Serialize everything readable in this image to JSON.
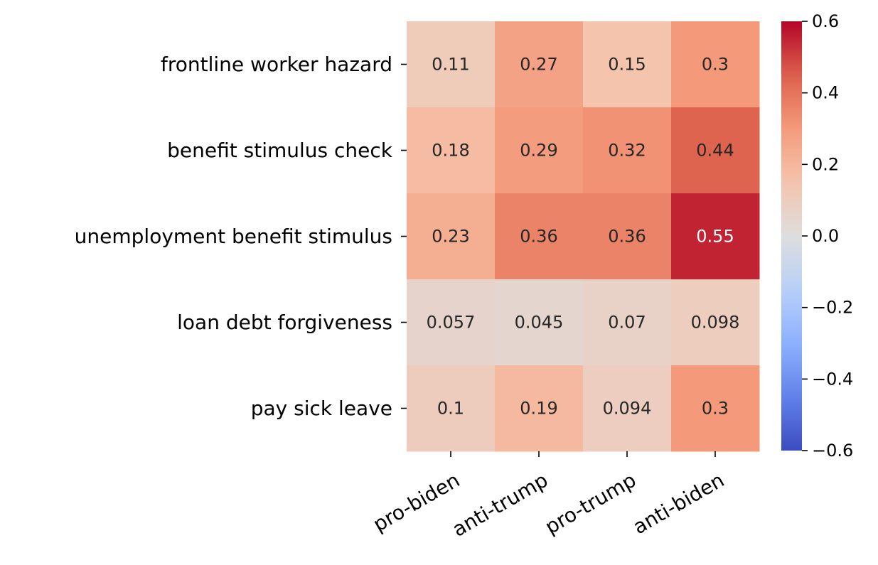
{
  "chart_data": {
    "type": "heatmap",
    "title": "",
    "xlabel": "",
    "ylabel": "",
    "columns": [
      "pro-biden",
      "anti-trump",
      "pro-trump",
      "anti-biden"
    ],
    "rows": [
      "frontline worker hazard",
      "benefit stimulus check",
      "unemployment benefit stimulus",
      "loan debt forgiveness",
      "pay sick leave"
    ],
    "values": [
      [
        0.11,
        0.27,
        0.15,
        0.3
      ],
      [
        0.18,
        0.29,
        0.32,
        0.44
      ],
      [
        0.23,
        0.36,
        0.36,
        0.55
      ],
      [
        0.057,
        0.045,
        0.07,
        0.098
      ],
      [
        0.1,
        0.19,
        0.094,
        0.3
      ]
    ],
    "cell_labels": [
      [
        "0.11",
        "0.27",
        "0.15",
        "0.3"
      ],
      [
        "0.18",
        "0.29",
        "0.32",
        "0.44"
      ],
      [
        "0.23",
        "0.36",
        "0.36",
        "0.55"
      ],
      [
        "0.057",
        "0.045",
        "0.07",
        "0.098"
      ],
      [
        "0.1",
        "0.19",
        "0.094",
        "0.3"
      ]
    ],
    "colormap": "coolwarm",
    "vmin": -0.6,
    "vmax": 0.6,
    "colorbar": {
      "ticks": [
        0.6,
        0.4,
        0.2,
        0.0,
        -0.2,
        -0.4,
        -0.6
      ],
      "tick_labels": [
        "0.6",
        "0.4",
        "0.2",
        "0.0",
        "−0.2",
        "−0.4",
        "−0.6"
      ]
    },
    "grid": false,
    "legend": "colorbar-right"
  }
}
